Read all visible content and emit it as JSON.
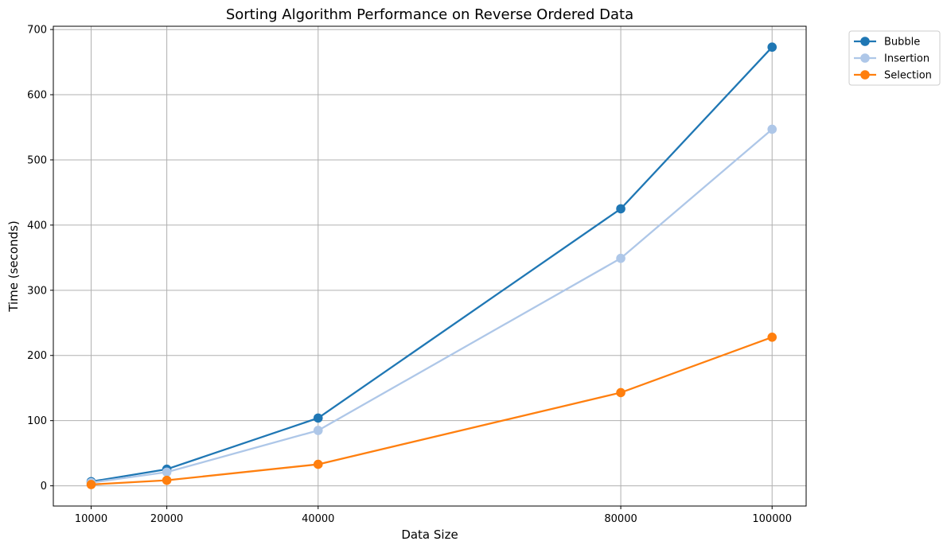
{
  "chart_data": {
    "type": "line",
    "title": "Sorting Algorithm Performance on Reverse Ordered Data",
    "xlabel": "Data Size",
    "ylabel": "Time (seconds)",
    "x": [
      10000,
      20000,
      40000,
      80000,
      100000
    ],
    "x_tick_labels": [
      "10000",
      "20000",
      "40000",
      "80000",
      "100000"
    ],
    "y_ticks": [
      0,
      100,
      200,
      300,
      400,
      500,
      600,
      700
    ],
    "y_tick_labels": [
      "0",
      "100",
      "200",
      "300",
      "400",
      "500",
      "600",
      "700"
    ],
    "xlim": [
      5000,
      104500
    ],
    "ylim": [
      -31,
      705
    ],
    "grid": true,
    "legend_position": "outside-top-right",
    "series": [
      {
        "name": "Bubble",
        "color": "#1f77b4",
        "values": [
          6.5,
          25.5,
          104,
          425,
          673
        ]
      },
      {
        "name": "Insertion",
        "color": "#aec7e8",
        "values": [
          5,
          21,
          85,
          349,
          547
        ]
      },
      {
        "name": "Selection",
        "color": "#ff7f0e",
        "values": [
          2,
          8.5,
          33,
          143,
          228
        ]
      }
    ]
  }
}
